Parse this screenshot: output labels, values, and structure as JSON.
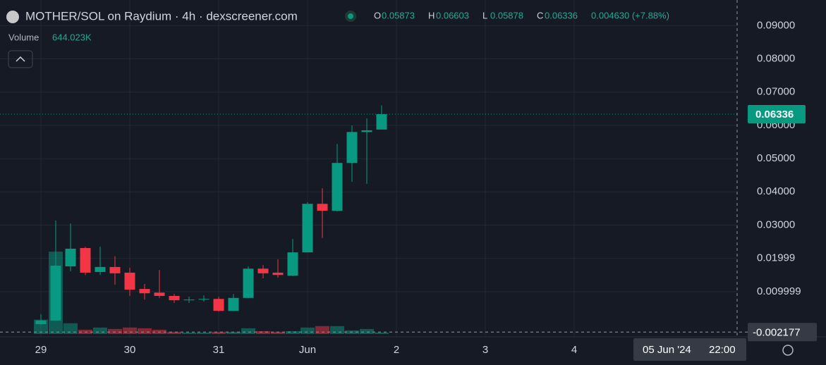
{
  "header": {
    "title": "MOTHER/SOL on Raydium · 4h · dexscreener.com",
    "ohlc": [
      {
        "key": "O",
        "value": "0.05873"
      },
      {
        "key": "H",
        "value": "0.06603"
      },
      {
        "key": "L",
        "value": "0.05878"
      },
      {
        "key": "C",
        "value": "0.06336"
      }
    ],
    "change": "0.004630 (+7.88%)",
    "volume_label": "Volume",
    "volume_value": "644.023K"
  },
  "chart_data": {
    "type": "candlestick",
    "open": [
      0.0002,
      0.0013,
      0.0176,
      0.0231,
      0.0159,
      0.0174,
      0.0157,
      0.0108,
      0.0097,
      0.0087,
      0.0074,
      0.0076,
      0.0078,
      0.0042,
      0.0081,
      0.0169,
      0.0157,
      0.0148,
      0.0218,
      0.0364,
      0.0343,
      0.0487,
      0.058,
      0.05873
    ],
    "high": [
      0.0032,
      0.0314,
      0.0305,
      0.0235,
      0.0235,
      0.0206,
      0.0172,
      0.0123,
      0.0165,
      0.0093,
      0.0085,
      0.0089,
      0.0085,
      0.0093,
      0.0176,
      0.018,
      0.0197,
      0.0258,
      0.0369,
      0.0411,
      0.0544,
      0.06,
      0.0621,
      0.06603
    ],
    "low": [
      0.0,
      0.0013,
      0.0161,
      0.015,
      0.015,
      0.0121,
      0.0087,
      0.0076,
      0.0081,
      0.0066,
      0.0066,
      0.007,
      0.004,
      0.0042,
      0.0081,
      0.014,
      0.0142,
      0.0146,
      0.0218,
      0.0261,
      0.0341,
      0.043,
      0.0424,
      0.05878
    ],
    "close": [
      0.0013,
      0.0178,
      0.0229,
      0.0157,
      0.0174,
      0.0155,
      0.0106,
      0.0095,
      0.0087,
      0.0074,
      0.0076,
      0.0078,
      0.0042,
      0.0081,
      0.0169,
      0.0155,
      0.015,
      0.0218,
      0.0364,
      0.0343,
      0.0487,
      0.058,
      0.0585,
      0.06336
    ],
    "volume": [
      6440000,
      37000000,
      4830000,
      1930000,
      2900000,
      2250000,
      2900000,
      2580000,
      1930000,
      966000,
      644000,
      644000,
      966000,
      966000,
      2580000,
      1290000,
      966000,
      1290000,
      2900000,
      3540000,
      3540000,
      1610000,
      2250000,
      644023
    ],
    "volume_ylim": [
      0,
      150000000
    ],
    "xticks": [
      {
        "value": 0,
        "label": "29"
      },
      {
        "value": 6,
        "label": "30"
      },
      {
        "value": 12,
        "label": "31"
      },
      {
        "value": 18,
        "label": "Jun"
      },
      {
        "value": 24,
        "label": "2"
      },
      {
        "value": 30,
        "label": "3"
      },
      {
        "value": 36,
        "label": "4"
      }
    ],
    "ylim": [
      -0.0036,
      0.0977
    ],
    "yticks": [
      {
        "value": 0.09,
        "label": "0.09000"
      },
      {
        "value": 0.08,
        "label": "0.08000"
      },
      {
        "value": 0.07,
        "label": "0.07000"
      },
      {
        "value": 0.06,
        "label": "0.06000"
      },
      {
        "value": 0.05,
        "label": "0.05000"
      },
      {
        "value": 0.04,
        "label": "0.04000"
      },
      {
        "value": 0.03,
        "label": "0.03000"
      },
      0.01999,
      0.009999
    ],
    "grid": true,
    "last_price": 0.06336,
    "crosshair_price": -0.002177,
    "crosshair_label": {
      "date": "05 Jun '24",
      "time": "22:00"
    },
    "up_color": "#089981",
    "down_color": "#f23645"
  }
}
